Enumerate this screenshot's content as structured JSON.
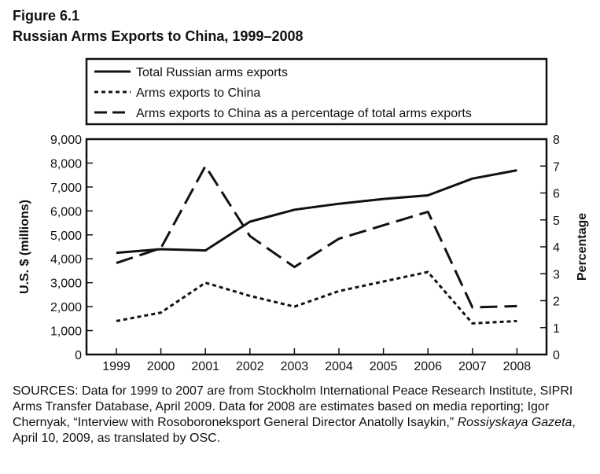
{
  "figure": {
    "label": "Figure 6.1",
    "title": "Russian Arms Exports to China, 1999–2008"
  },
  "sources": {
    "before_italic": "SOURCES: Data for 1999 to 2007 are from Stockholm International Peace Research Institute, SIPRI Arms Transfer Database, April 2009. Data for 2008 are estimates based on media reporting; Igor Chernyak, “Interview with Rosoboroneksport General Director Anatolly Isaykin,”",
    "italic": "Rossiyskaya Gazeta",
    "after_italic": ", April 10, 2009, as translated by OSC."
  },
  "chart_data": {
    "type": "line",
    "categories": [
      "1999",
      "2000",
      "2001",
      "2002",
      "2003",
      "2004",
      "2005",
      "2006",
      "2007",
      "2008"
    ],
    "xlabel": "",
    "ylabel": "U.S. $ (millions)",
    "ylim": [
      0,
      9000
    ],
    "yticks": [
      "0",
      "1,000",
      "2,000",
      "3,000",
      "4,000",
      "5,000",
      "6,000",
      "7,000",
      "8,000",
      "9,000"
    ],
    "y2label": "Percentage",
    "y2lim": [
      0,
      8
    ],
    "y2ticks": [
      "0",
      "1",
      "2",
      "3",
      "4",
      "5",
      "6",
      "7",
      "8"
    ],
    "grid": false,
    "legend_position": "top",
    "series": [
      {
        "name": "Total Russian arms exports",
        "axis": "left",
        "style": "solid",
        "values": [
          4250,
          4400,
          4350,
          5550,
          6050,
          6300,
          6500,
          6650,
          7350,
          7700
        ]
      },
      {
        "name": "Arms exports to China",
        "axis": "left",
        "style": "dotted",
        "values": [
          1400,
          1750,
          3000,
          2450,
          2000,
          2650,
          3050,
          3450,
          1300,
          1400
        ]
      },
      {
        "name": "Arms exports to China as a percentage of total arms exports",
        "axis": "right",
        "style": "dashed",
        "values": [
          3.4,
          3.95,
          7.0,
          4.4,
          3.25,
          4.3,
          4.8,
          5.3,
          1.75,
          1.8
        ]
      }
    ]
  }
}
